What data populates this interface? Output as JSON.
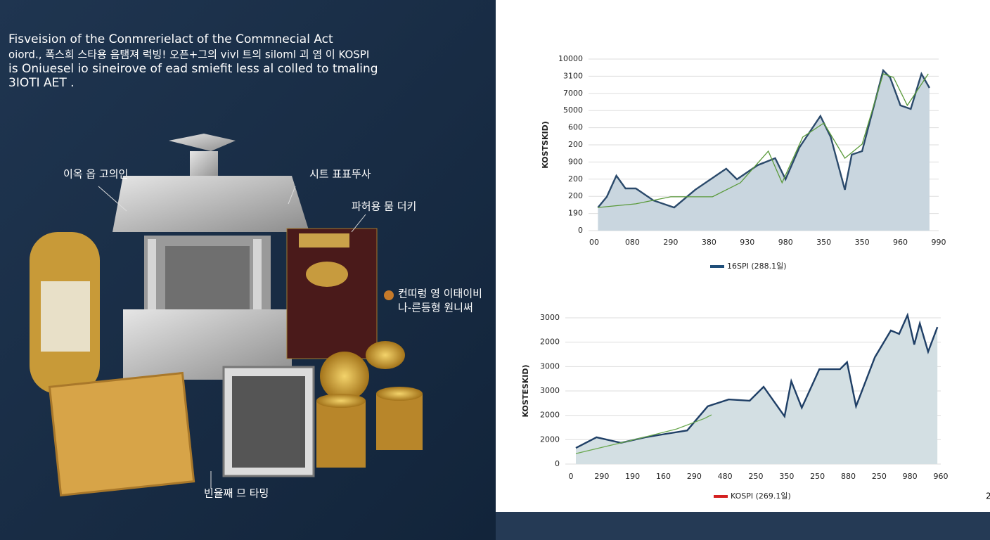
{
  "left_panel": {
    "title_lines": [
      "Fisveision of the Conmrerielact of the Commnecial Act",
      "oiord., 폭스희 스타용 음탬져 럭빙! 오픈+그의 vivl 트의 siloml 괴 염 이 KOSPI",
      "is Oniuesel io sineirove of ead smiefit less al colled to tmaling",
      "3IOTI AET ."
    ],
    "labels": [
      "이옥 옵 고의인",
      "시트 표표뚜사",
      "파허용 뭄 더키",
      "컨띠렁 영 이태이비",
      "나-른등형 원니써",
      "빈율째 므 타밍"
    ]
  },
  "page_number": "2",
  "chart_data": [
    {
      "type": "line",
      "y_label": "KOSTSKID)",
      "grid": true,
      "ylim": [
        0,
        10
      ],
      "yticks": [
        {
          "value": 0,
          "label": "0"
        },
        {
          "value": 1,
          "label": "190"
        },
        {
          "value": 2,
          "label": "200"
        },
        {
          "value": 3,
          "label": "200"
        },
        {
          "value": 4,
          "label": "900"
        },
        {
          "value": 5,
          "label": "200"
        },
        {
          "value": 6,
          "label": "600"
        },
        {
          "value": 7,
          "label": "5000"
        },
        {
          "value": 8,
          "label": "7000"
        },
        {
          "value": 9,
          "label": "3100"
        },
        {
          "value": 10,
          "label": "10000"
        }
      ],
      "xlim": [
        0,
        9
      ],
      "xticks": [
        {
          "value": 0,
          "label": "00"
        },
        {
          "value": 1,
          "label": "080"
        },
        {
          "value": 2,
          "label": "290"
        },
        {
          "value": 3,
          "label": "380"
        },
        {
          "value": 4,
          "label": "930"
        },
        {
          "value": 5,
          "label": "980"
        },
        {
          "value": 6,
          "label": "350"
        },
        {
          "value": 7,
          "label": "350"
        },
        {
          "value": 8,
          "label": "960"
        },
        {
          "value": 9,
          "label": "990"
        }
      ],
      "legend_color": "#1f4e79",
      "series": [
        {
          "name": "16SPI (288.1일)",
          "color": "#2b4a6b",
          "fill": "#c9d6df",
          "x": [
            0.1,
            0.33,
            0.58,
            0.82,
            1.09,
            1.55,
            2.09,
            2.64,
            3.18,
            3.45,
            3.73,
            4.27,
            4.73,
            5.0,
            5.36,
            5.91,
            6.18,
            6.55,
            6.73,
            7.0,
            7.55,
            7.73,
            8.0,
            8.27,
            8.55,
            8.76
          ],
          "values": [
            1.35,
            1.97,
            3.2,
            2.46,
            2.46,
            1.76,
            1.35,
            2.38,
            3.2,
            3.61,
            2.99,
            3.81,
            4.22,
            2.99,
            4.84,
            6.68,
            5.45,
            2.38,
            4.43,
            4.63,
            9.34,
            8.93,
            7.3,
            7.09,
            9.14,
            8.32
          ]
        },
        {
          "color": "#5a9a3a",
          "x": [
            0.1,
            1.09,
            2.0,
            3.09,
            3.82,
            4.55,
            4.91,
            5.45,
            6.0,
            6.55,
            7.0,
            7.55,
            7.82,
            8.18,
            8.73
          ],
          "values": [
            1.35,
            1.56,
            1.97,
            1.97,
            2.79,
            4.63,
            2.79,
            5.45,
            6.27,
            4.22,
            5.04,
            9.14,
            8.93,
            7.3,
            9.14
          ]
        }
      ]
    },
    {
      "type": "line",
      "y_label": "KOSTESKID)",
      "grid": true,
      "ylim": [
        0,
        6
      ],
      "yticks": [
        {
          "value": 0,
          "label": "0"
        },
        {
          "value": 1,
          "label": "2000"
        },
        {
          "value": 2,
          "label": "2000"
        },
        {
          "value": 3,
          "label": "3000"
        },
        {
          "value": 4,
          "label": "3000"
        },
        {
          "value": 5,
          "label": "2000"
        },
        {
          "value": 6,
          "label": "3000"
        }
      ],
      "xlim": [
        0,
        12
      ],
      "xticks": [
        {
          "value": 0,
          "label": "0"
        },
        {
          "value": 1,
          "label": "290"
        },
        {
          "value": 2,
          "label": "190"
        },
        {
          "value": 3,
          "label": "160"
        },
        {
          "value": 4,
          "label": "290"
        },
        {
          "value": 5,
          "label": "480"
        },
        {
          "value": 6,
          "label": "250"
        },
        {
          "value": 7,
          "label": "350"
        },
        {
          "value": 8,
          "label": "250"
        },
        {
          "value": 9,
          "label": "880"
        },
        {
          "value": 10,
          "label": "250"
        },
        {
          "value": 11,
          "label": "980"
        },
        {
          "value": 12,
          "label": "960"
        }
      ],
      "legend_color": "#d42020",
      "series": [
        {
          "name": "KOSPI (269.1일)",
          "color": "#1f3f66",
          "fill": "#d3dfe3",
          "x": [
            0.16,
            0.83,
            1.62,
            2.41,
            3.09,
            3.77,
            4.44,
            5.12,
            5.8,
            6.25,
            6.93,
            7.15,
            7.49,
            8.06,
            8.73,
            8.96,
            9.25,
            9.86,
            10.38,
            10.65,
            10.92,
            11.14,
            11.32,
            11.59,
            11.89
          ],
          "values": [
            0.66,
            1.1,
            0.87,
            1.1,
            1.24,
            1.38,
            2.37,
            2.65,
            2.6,
            3.17,
            1.96,
            3.4,
            2.31,
            3.89,
            3.89,
            4.18,
            2.37,
            4.38,
            5.48,
            5.34,
            6.11,
            4.9,
            5.77,
            4.61,
            5.62
          ]
        },
        {
          "color": "#6aa84f",
          "x": [
            0.16,
            2.08,
            3.43,
            4.33,
            4.56
          ],
          "values": [
            0.43,
            1.01,
            1.44,
            1.87,
            2.02
          ]
        }
      ]
    }
  ]
}
